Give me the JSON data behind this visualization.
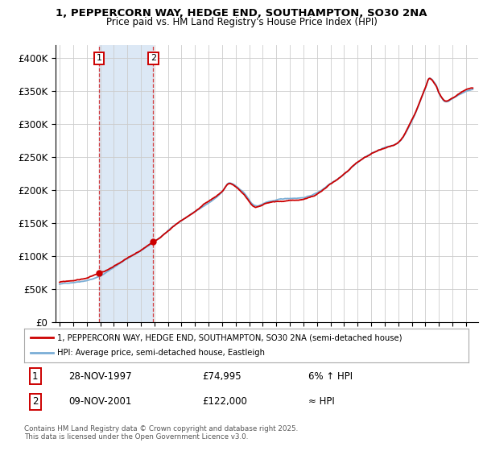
{
  "title1": "1, PEPPERCORN WAY, HEDGE END, SOUTHAMPTON, SO30 2NA",
  "title2": "Price paid vs. HM Land Registry's House Price Index (HPI)",
  "ylim": [
    0,
    420000
  ],
  "yticks": [
    0,
    50000,
    100000,
    150000,
    200000,
    250000,
    300000,
    350000,
    400000
  ],
  "ytick_labels": [
    "£0",
    "£50K",
    "£100K",
    "£150K",
    "£200K",
    "£250K",
    "£300K",
    "£350K",
    "£400K"
  ],
  "legend_line1": "1, PEPPERCORN WAY, HEDGE END, SOUTHAMPTON, SO30 2NA (semi-detached house)",
  "legend_line2": "HPI: Average price, semi-detached house, Eastleigh",
  "transaction1_date": "28-NOV-1997",
  "transaction1_price": 74995,
  "transaction1_label": "6% ↑ HPI",
  "transaction2_date": "09-NOV-2001",
  "transaction2_price": 122000,
  "transaction2_label": "≈ HPI",
  "footnote": "Contains HM Land Registry data © Crown copyright and database right 2025.\nThis data is licensed under the Open Government Licence v3.0.",
  "line_color_red": "#cc0000",
  "line_color_blue": "#7aaed6",
  "shade_color": "#dce8f5",
  "marker_box_color": "#cc0000",
  "background_color": "#ffffff",
  "grid_color": "#cccccc",
  "t1_year": 1997.917,
  "t2_year": 2001.917
}
